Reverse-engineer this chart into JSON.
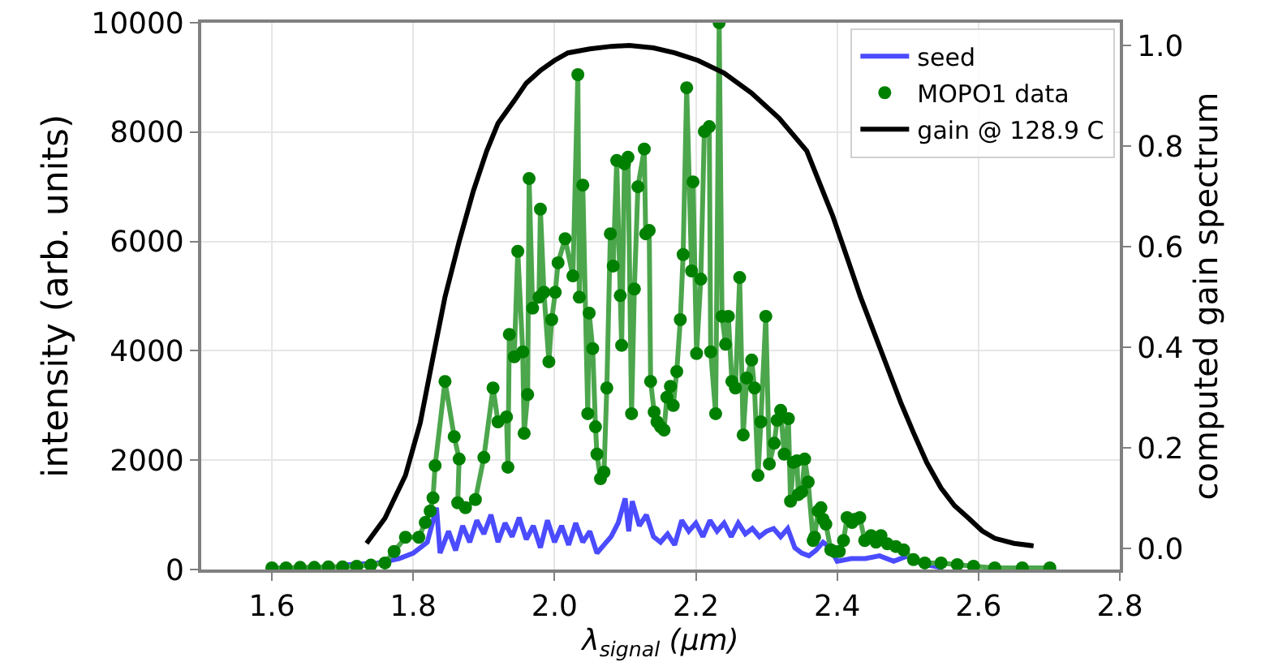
{
  "chart_data": {
    "type": "line",
    "xlabel": "λ$_{signal}$ (μm)",
    "ylabel": "intensity (arb. units)",
    "y2label": "computed gain spectrum",
    "xlim": [
      1.5,
      2.8
    ],
    "xticks": [
      {
        "value": 1.6,
        "label": "1.6"
      },
      {
        "value": 1.8,
        "label": "1.8"
      },
      {
        "value": 2.0,
        "label": "2.0"
      },
      {
        "value": 2.2,
        "label": "2.2"
      },
      {
        "value": 2.4,
        "label": "2.4"
      },
      {
        "value": 2.6,
        "label": "2.6"
      },
      {
        "value": 2.8,
        "label": "2.8"
      }
    ],
    "ylim": [
      0,
      10000
    ],
    "yticks": [
      0,
      2000,
      4000,
      6000,
      8000,
      10000
    ],
    "y2lim": [
      -0.042,
      1.045
    ],
    "y2ticks": [
      {
        "value": 0,
        "label": "0.0"
      },
      {
        "value": 0.2,
        "label": "0.2"
      },
      {
        "value": 0.4,
        "label": "0.4"
      },
      {
        "value": 0.6,
        "label": "0.6"
      },
      {
        "value": 0.8,
        "label": "0.8"
      },
      {
        "value": 1.0,
        "label": "1.0"
      }
    ],
    "grid": true,
    "legend": "top right",
    "series": [
      {
        "name": "seed",
        "color": "#4b4bff",
        "x": [
          1.7,
          1.75,
          1.78,
          1.8,
          1.82,
          1.833,
          1.838,
          1.85,
          1.86,
          1.87,
          1.88,
          1.89,
          1.9,
          1.91,
          1.92,
          1.93,
          1.94,
          1.95,
          1.96,
          1.97,
          1.98,
          1.99,
          2.0,
          2.01,
          2.02,
          2.03,
          2.04,
          2.05,
          2.06,
          2.07,
          2.08,
          2.09,
          2.1,
          2.105,
          2.11,
          2.12,
          2.13,
          2.14,
          2.15,
          2.16,
          2.17,
          2.18,
          2.19,
          2.2,
          2.21,
          2.22,
          2.23,
          2.24,
          2.25,
          2.26,
          2.27,
          2.28,
          2.29,
          2.3,
          2.31,
          2.32,
          2.33,
          2.34,
          2.35,
          2.36,
          2.37,
          2.38,
          2.39,
          2.4,
          2.42,
          2.44,
          2.46,
          2.48,
          2.5,
          2.52,
          2.55
        ],
        "values": [
          80,
          120,
          200,
          300,
          500,
          1130,
          300,
          700,
          350,
          800,
          500,
          900,
          650,
          1000,
          500,
          850,
          600,
          950,
          550,
          800,
          400,
          900,
          500,
          800,
          450,
          850,
          500,
          700,
          300,
          450,
          600,
          850,
          1300,
          700,
          1250,
          800,
          1000,
          600,
          500,
          650,
          450,
          900,
          700,
          850,
          600,
          900,
          700,
          850,
          600,
          850,
          650,
          750,
          600,
          700,
          750,
          600,
          750,
          400,
          300,
          250,
          350,
          500,
          400,
          150,
          200,
          200,
          250,
          150,
          250,
          100,
          30
        ]
      },
      {
        "color": "#4ca64c",
        "x": [
          1.6,
          1.62,
          1.64,
          1.66,
          1.68,
          1.7,
          1.72,
          1.74,
          1.76,
          1.773,
          1.789,
          1.808,
          1.817,
          1.824,
          1.828,
          1.831,
          1.845,
          1.858,
          1.865,
          1.863,
          1.874,
          1.888,
          1.9,
          1.913,
          1.92,
          1.932,
          1.934,
          1.936,
          1.943,
          1.948,
          1.955,
          1.957,
          1.962,
          1.964,
          1.969,
          1.978,
          1.98,
          1.985,
          1.992,
          1.996,
          2.001,
          2.005,
          2.015,
          2.026,
          2.033,
          2.035,
          2.04,
          2.047,
          2.049,
          2.054,
          2.058,
          2.06,
          2.065,
          2.07,
          2.074,
          2.079,
          2.083,
          2.088,
          2.093,
          2.095,
          2.099,
          2.104,
          2.109,
          2.113,
          2.118,
          2.127,
          2.129,
          2.134,
          2.136,
          2.141,
          2.145,
          2.15,
          2.155,
          2.159,
          2.164,
          2.168,
          2.173,
          2.178,
          2.182,
          2.187,
          2.194,
          2.196,
          2.201,
          2.207,
          2.212,
          2.219,
          2.221,
          2.228,
          2.233,
          2.237,
          2.242,
          2.246,
          2.251,
          2.256,
          2.262,
          2.267,
          2.272,
          2.279,
          2.283,
          2.288,
          2.292,
          2.299,
          2.304,
          2.311,
          2.315,
          2.32,
          2.325,
          2.331,
          2.334,
          2.338,
          2.343,
          2.345,
          2.35,
          2.354,
          2.359,
          2.366,
          2.368,
          2.373,
          2.377,
          2.38,
          2.384,
          2.391,
          2.396,
          2.403,
          2.409,
          2.414,
          2.421,
          2.426,
          2.432,
          2.439,
          2.448,
          2.455,
          2.462,
          2.471,
          2.483,
          2.494,
          2.508,
          2.524,
          2.547,
          2.57,
          2.593,
          2.623,
          2.662,
          2.701
        ],
        "values": [
          30,
          30,
          40,
          40,
          50,
          50,
          60,
          80,
          120,
          330,
          590,
          590,
          860,
          1070,
          1310,
          1900,
          3440,
          2430,
          2020,
          1220,
          1130,
          1280,
          2050,
          3320,
          2700,
          2790,
          1870,
          4300,
          3890,
          5820,
          3980,
          2490,
          3200,
          7150,
          4780,
          4980,
          6590,
          5070,
          3800,
          4570,
          5070,
          5610,
          6050,
          5370,
          9050,
          4980,
          7030,
          2850,
          4690,
          4040,
          2610,
          2110,
          1660,
          1780,
          3320,
          6140,
          5550,
          7480,
          5010,
          4100,
          7420,
          7540,
          2850,
          5130,
          7000,
          7690,
          6140,
          6200,
          3440,
          2880,
          2700,
          2610,
          2550,
          3150,
          3350,
          3000,
          3620,
          4570,
          5760,
          8810,
          5460,
          7090,
          3950,
          5310,
          8010,
          8100,
          3980,
          2850,
          10000,
          4630,
          4120,
          4630,
          3440,
          3320,
          5340,
          2460,
          3500,
          3830,
          3320,
          1720,
          2700,
          4630,
          1930,
          2310,
          2730,
          2910,
          2110,
          2760,
          1250,
          1960,
          1990,
          1370,
          1420,
          2020,
          1600,
          530,
          590,
          1070,
          1130,
          920,
          830,
          360,
          330,
          330,
          530,
          950,
          860,
          920,
          950,
          530,
          620,
          500,
          620,
          470,
          420,
          360,
          180,
          120,
          120,
          90,
          60,
          30,
          30,
          30
        ]
      },
      {
        "name": "MOPO1 data",
        "type": "scatter",
        "color": "#008000",
        "marker": "circle",
        "x": [
          1.6,
          1.62,
          1.64,
          1.66,
          1.68,
          1.7,
          1.72,
          1.74,
          1.76,
          1.773,
          1.789,
          1.808,
          1.817,
          1.824,
          1.828,
          1.831,
          1.845,
          1.858,
          1.865,
          1.863,
          1.874,
          1.888,
          1.9,
          1.913,
          1.92,
          1.932,
          1.934,
          1.936,
          1.943,
          1.948,
          1.955,
          1.957,
          1.962,
          1.964,
          1.969,
          1.978,
          1.98,
          1.985,
          1.992,
          1.996,
          2.001,
          2.005,
          2.015,
          2.026,
          2.033,
          2.035,
          2.04,
          2.047,
          2.049,
          2.054,
          2.058,
          2.06,
          2.065,
          2.07,
          2.074,
          2.079,
          2.083,
          2.088,
          2.093,
          2.095,
          2.099,
          2.104,
          2.109,
          2.113,
          2.118,
          2.127,
          2.129,
          2.134,
          2.136,
          2.141,
          2.145,
          2.15,
          2.155,
          2.159,
          2.164,
          2.168,
          2.173,
          2.178,
          2.182,
          2.187,
          2.194,
          2.196,
          2.201,
          2.207,
          2.212,
          2.219,
          2.221,
          2.228,
          2.233,
          2.237,
          2.242,
          2.246,
          2.251,
          2.256,
          2.262,
          2.267,
          2.272,
          2.279,
          2.283,
          2.288,
          2.292,
          2.299,
          2.304,
          2.311,
          2.315,
          2.32,
          2.325,
          2.331,
          2.334,
          2.338,
          2.343,
          2.345,
          2.35,
          2.354,
          2.359,
          2.366,
          2.368,
          2.373,
          2.377,
          2.38,
          2.384,
          2.391,
          2.396,
          2.403,
          2.409,
          2.414,
          2.421,
          2.426,
          2.432,
          2.439,
          2.448,
          2.455,
          2.462,
          2.471,
          2.483,
          2.494,
          2.508,
          2.524,
          2.547,
          2.57,
          2.593,
          2.623,
          2.662,
          2.701
        ],
        "values": [
          30,
          30,
          40,
          40,
          50,
          50,
          60,
          80,
          120,
          330,
          590,
          590,
          860,
          1070,
          1310,
          1900,
          3440,
          2430,
          2020,
          1220,
          1130,
          1280,
          2050,
          3320,
          2700,
          2790,
          1870,
          4300,
          3890,
          5820,
          3980,
          2490,
          3200,
          7150,
          4780,
          4980,
          6590,
          5070,
          3800,
          4570,
          5070,
          5610,
          6050,
          5370,
          9050,
          4980,
          7030,
          2850,
          4690,
          4040,
          2610,
          2110,
          1660,
          1780,
          3320,
          6140,
          5550,
          7480,
          5010,
          4100,
          7420,
          7540,
          2850,
          5130,
          7000,
          7690,
          6140,
          6200,
          3440,
          2880,
          2700,
          2610,
          2550,
          3150,
          3350,
          3000,
          3620,
          4570,
          5760,
          8810,
          5460,
          7090,
          3950,
          5310,
          8010,
          8100,
          3980,
          2850,
          10000,
          4630,
          4120,
          4630,
          3440,
          3320,
          5340,
          2460,
          3500,
          3830,
          3320,
          1720,
          2700,
          4630,
          1930,
          2310,
          2730,
          2910,
          2110,
          2760,
          1250,
          1960,
          1990,
          1370,
          1420,
          2020,
          1600,
          530,
          590,
          1070,
          1130,
          920,
          830,
          360,
          330,
          330,
          530,
          950,
          860,
          920,
          950,
          530,
          620,
          500,
          620,
          470,
          420,
          360,
          180,
          120,
          120,
          90,
          60,
          30,
          30,
          30
        ]
      },
      {
        "name": "gain @ 128.9 C",
        "axis": "y2",
        "color": "#000000",
        "x": [
          1.734,
          1.76,
          1.789,
          1.81,
          1.828,
          1.845,
          1.865,
          1.885,
          1.904,
          1.92,
          1.943,
          1.96,
          1.98,
          2.0,
          2.019,
          2.05,
          2.08,
          2.106,
          2.14,
          2.17,
          2.203,
          2.24,
          2.279,
          2.318,
          2.357,
          2.394,
          2.416,
          2.433,
          2.452,
          2.471,
          2.49,
          2.508,
          2.527,
          2.547,
          2.566,
          2.586,
          2.605,
          2.623,
          2.65,
          2.678
        ],
        "values": [
          0.01,
          0.06,
          0.145,
          0.25,
          0.38,
          0.5,
          0.61,
          0.71,
          0.79,
          0.845,
          0.89,
          0.925,
          0.95,
          0.97,
          0.985,
          0.993,
          0.998,
          1.0,
          0.995,
          0.985,
          0.97,
          0.945,
          0.905,
          0.855,
          0.79,
          0.66,
          0.57,
          0.5,
          0.43,
          0.36,
          0.29,
          0.23,
          0.17,
          0.12,
          0.085,
          0.06,
          0.035,
          0.02,
          0.01,
          0.005
        ]
      }
    ]
  }
}
